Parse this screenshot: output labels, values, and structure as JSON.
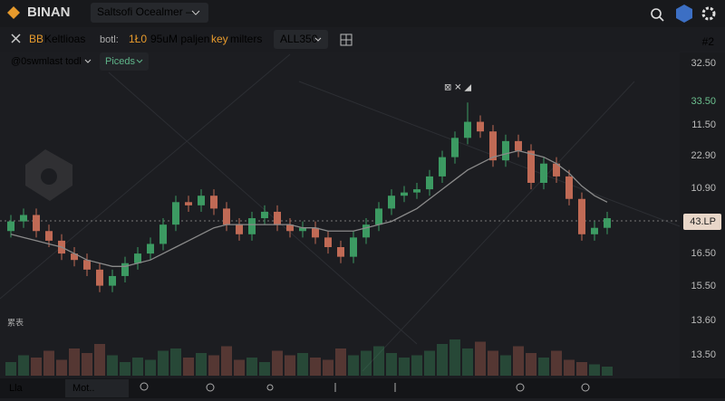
{
  "header": {
    "brand": "BINAN",
    "market": "Saltsofi Ocealmer —"
  },
  "toolbar": {
    "indicator_prefix": "BB",
    "indicator": "Keltlioas",
    "stat_label": "botl:",
    "stat_value": "1Ł0",
    "volume_text": "95uM paljen",
    "keyword": "key",
    "suffix": "milters",
    "interval": "ALL350",
    "layout_count": "#2"
  },
  "subtoolbar": {
    "source": "@0swmlast todl",
    "mode": "Piceds"
  },
  "chart": {
    "type": "candlestick",
    "annotation": "⊠ ✕ ◢",
    "corner_label": "累表",
    "price_labels": [
      "32.50",
      "33.50",
      "11.50",
      "22.90",
      "10.90",
      "43.LP",
      "16.50",
      "15.50",
      "13.60",
      "13.50"
    ],
    "ylim": [
      0,
      100
    ],
    "candles": [
      [
        45,
        50,
        43,
        48
      ],
      [
        48,
        52,
        46,
        50
      ],
      [
        50,
        52,
        43,
        45
      ],
      [
        45,
        47,
        40,
        42
      ],
      [
        42,
        44,
        36,
        38
      ],
      [
        38,
        40,
        34,
        36
      ],
      [
        36,
        38,
        31,
        33
      ],
      [
        33,
        35,
        26,
        28
      ],
      [
        28,
        33,
        26,
        31
      ],
      [
        31,
        37,
        29,
        35
      ],
      [
        35,
        40,
        33,
        38
      ],
      [
        38,
        43,
        36,
        41
      ],
      [
        41,
        49,
        39,
        47
      ],
      [
        47,
        56,
        45,
        54
      ],
      [
        54,
        56,
        51,
        53
      ],
      [
        53,
        58,
        51,
        56
      ],
      [
        56,
        58,
        50,
        52
      ],
      [
        52,
        54,
        45,
        47
      ],
      [
        47,
        49,
        42,
        44
      ],
      [
        44,
        51,
        42,
        49
      ],
      [
        49,
        53,
        47,
        51
      ],
      [
        51,
        53,
        45,
        47
      ],
      [
        47,
        49,
        43,
        45
      ],
      [
        45,
        48,
        43,
        46
      ],
      [
        46,
        48,
        41,
        43
      ],
      [
        43,
        45,
        38,
        40
      ],
      [
        40,
        42,
        35,
        37
      ],
      [
        37,
        45,
        35,
        43
      ],
      [
        43,
        49,
        41,
        47
      ],
      [
        47,
        54,
        45,
        52
      ],
      [
        52,
        58,
        50,
        56
      ],
      [
        56,
        59,
        54,
        57
      ],
      [
        57,
        60,
        55,
        58
      ],
      [
        58,
        64,
        56,
        62
      ],
      [
        62,
        70,
        60,
        68
      ],
      [
        68,
        76,
        66,
        74
      ],
      [
        74,
        85,
        72,
        79
      ],
      [
        79,
        81,
        74,
        76
      ],
      [
        76,
        78,
        65,
        67
      ],
      [
        67,
        75,
        65,
        73
      ],
      [
        73,
        75,
        68,
        70
      ],
      [
        70,
        72,
        58,
        60
      ],
      [
        60,
        68,
        58,
        66
      ],
      [
        66,
        68,
        60,
        62
      ],
      [
        62,
        64,
        53,
        55
      ],
      [
        55,
        57,
        42,
        44
      ],
      [
        44,
        48,
        42,
        46
      ],
      [
        46,
        51,
        44,
        49
      ]
    ],
    "ma": [
      44,
      43,
      42,
      41,
      40,
      38,
      36,
      35,
      34,
      34,
      35,
      36,
      38,
      40,
      42,
      44,
      46,
      47,
      47,
      47,
      47,
      47,
      47,
      46,
      46,
      45,
      45,
      45,
      46,
      47,
      48,
      50,
      52,
      55,
      58,
      61,
      64,
      66,
      68,
      69,
      70,
      69,
      68,
      66,
      63,
      59,
      56,
      54
    ],
    "volumes": [
      30,
      45,
      40,
      55,
      35,
      60,
      50,
      70,
      45,
      30,
      40,
      35,
      55,
      60,
      40,
      50,
      45,
      65,
      35,
      40,
      30,
      55,
      45,
      50,
      40,
      35,
      60,
      45,
      55,
      65,
      50,
      40,
      45,
      55,
      70,
      80,
      60,
      75,
      55,
      45,
      65,
      50,
      40,
      55,
      35,
      30,
      25,
      20
    ],
    "up_color": "#3c9a62",
    "down_color": "#c06a55",
    "ma_color": "#8a8a8a"
  },
  "footer": {
    "left": "Lla",
    "tab": "Mot.."
  }
}
